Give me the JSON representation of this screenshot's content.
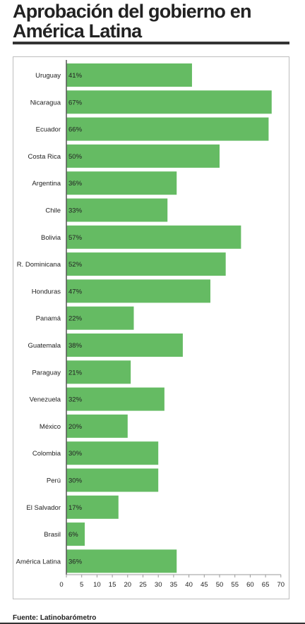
{
  "title": "Aprobación del gobierno en América Latina",
  "source": "Fuente: Latinobarómetro",
  "colors": {
    "bar": "#65bb63",
    "text": "#222222",
    "axis": "#555555"
  },
  "chart_data": {
    "type": "bar",
    "orientation": "horizontal",
    "categories": [
      "Uruguay",
      "Nicaragua",
      "Ecuador",
      "Costa Rica",
      "Argentina",
      "Chile",
      "Bolivia",
      "R. Dominicana",
      "Honduras",
      "Panamá",
      "Guatemala",
      "Paraguay",
      "Venezuela",
      "México",
      "Colombia",
      "Perú",
      "El Salvador",
      "Brasil",
      "América Latina"
    ],
    "values": [
      41,
      67,
      66,
      50,
      36,
      33,
      57,
      52,
      47,
      22,
      38,
      21,
      32,
      20,
      30,
      30,
      17,
      6,
      36
    ],
    "value_labels": [
      "41%",
      "67%",
      "66%",
      "50%",
      "36%",
      "33%",
      "57%",
      "52%",
      "47%",
      "22%",
      "38%",
      "21%",
      "32%",
      "20%",
      "30%",
      "30%",
      "17%",
      "6%",
      "36%"
    ],
    "xlim": [
      0,
      70
    ],
    "xticks": [
      "0",
      "5",
      "10",
      "15",
      "20",
      "25",
      "30",
      "35",
      "40",
      "45",
      "50",
      "55",
      "60",
      "65",
      "70"
    ],
    "xlabel": "",
    "ylabel": "",
    "grid": false,
    "legend": "none"
  }
}
